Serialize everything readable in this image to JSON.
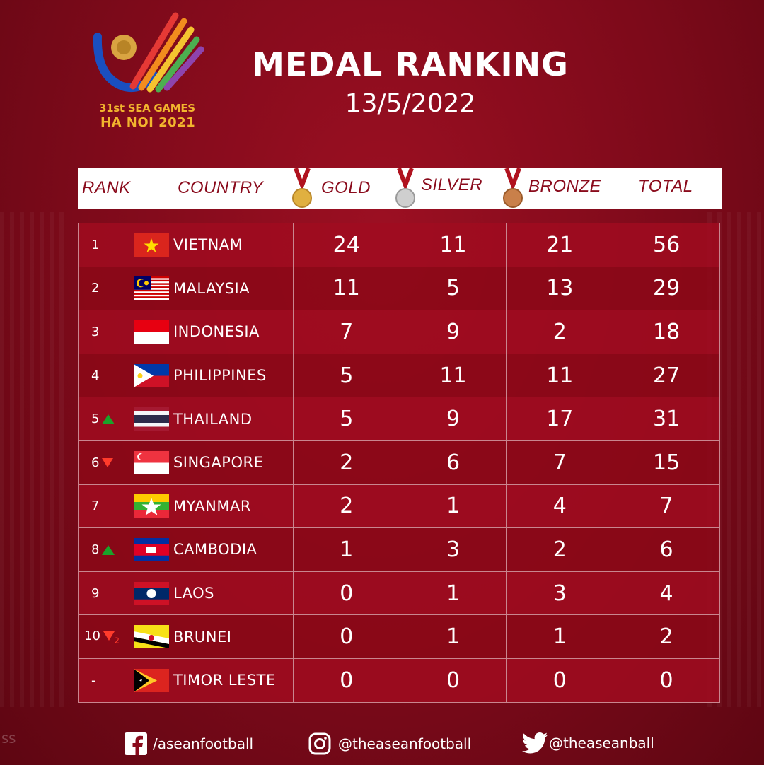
{
  "logo": {
    "line1": "31st SEA GAMES",
    "line2": "HA NOI 2021"
  },
  "title": "MEDAL RANKING",
  "date": "13/5/2022",
  "headers": {
    "rank": "RANK",
    "country": "COUNTRY",
    "gold": "GOLD",
    "silver": "SILVER",
    "bronze": "BRONZE",
    "total": "TOTAL"
  },
  "rows": [
    {
      "rank": "1",
      "country": "VIETNAM",
      "gold": "24",
      "silver": "11",
      "bronze": "21",
      "total": "56"
    },
    {
      "rank": "2",
      "country": "MALAYSIA",
      "gold": "11",
      "silver": "5",
      "bronze": "13",
      "total": "29"
    },
    {
      "rank": "3",
      "country": "INDONESIA",
      "gold": "7",
      "silver": "9",
      "bronze": "2",
      "total": "18"
    },
    {
      "rank": "4",
      "country": "PHILIPPINES",
      "gold": "5",
      "silver": "11",
      "bronze": "11",
      "total": "27"
    },
    {
      "rank": "5",
      "country": "THAILAND",
      "gold": "5",
      "silver": "9",
      "bronze": "17",
      "total": "31",
      "trend": "up"
    },
    {
      "rank": "6",
      "country": "SINGAPORE",
      "gold": "2",
      "silver": "6",
      "bronze": "7",
      "total": "15",
      "trend": "down"
    },
    {
      "rank": "7",
      "country": "MYANMAR",
      "gold": "2",
      "silver": "1",
      "bronze": "4",
      "total": "7"
    },
    {
      "rank": "8",
      "country": "CAMBODIA",
      "gold": "1",
      "silver": "3",
      "bronze": "2",
      "total": "6",
      "trend": "up"
    },
    {
      "rank": "9",
      "country": "LAOS",
      "gold": "0",
      "silver": "1",
      "bronze": "3",
      "total": "4"
    },
    {
      "rank": "10",
      "country": "BRUNEI",
      "gold": "0",
      "silver": "1",
      "bronze": "1",
      "total": "2",
      "trend": "down",
      "trend_value": "2"
    },
    {
      "rank": "-",
      "country": "TIMOR LESTE",
      "gold": "0",
      "silver": "0",
      "bronze": "0",
      "total": "0"
    }
  ],
  "footer": {
    "facebook": "/aseanfootball",
    "instagram": "@theaseanfootball",
    "twitter": "@theaseanball"
  },
  "watermark": "SS",
  "colors": {
    "background": "#8a0b1c",
    "gold": "#e0b040",
    "silver": "#c8c8c8",
    "bronze": "#c9804a",
    "up": "#1aa32a",
    "down": "#ff3b2b"
  }
}
